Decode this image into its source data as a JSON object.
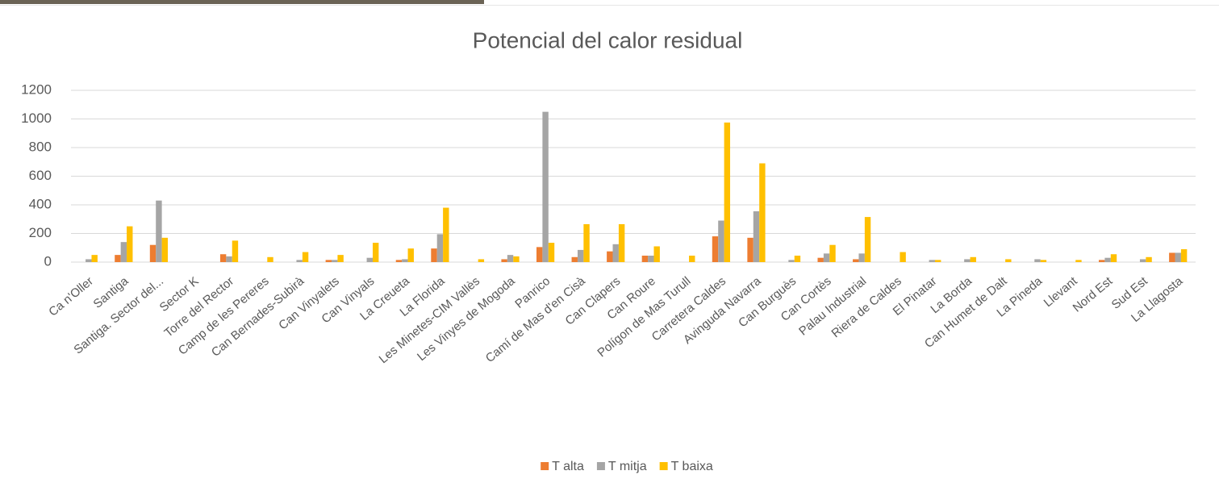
{
  "chart_data": {
    "type": "bar",
    "title": "Potencial del calor residual",
    "categories": [
      "Ca n'Oller",
      "Santiga",
      "Santiga. Sector del...",
      "Sector K",
      "Torre del Rector",
      "Camp de les Pereres",
      "Can Bernades-Subirà",
      "Can Vinyalets",
      "Can Vinyals",
      "La Creueta",
      "La Florida",
      "Les Minetes-CIM Vallès",
      "Les Vinyes de Mogoda",
      "Panrico",
      "Camí de Mas d'en Cisà",
      "Can Clapers",
      "Can Roure",
      "Polígon de Mas Turull",
      "Carretera Caldes",
      "Avinguda Navarra",
      "Can Burguès",
      "Can Cortès",
      "Palau Industrial",
      "Riera de Caldes",
      "El Pinatar",
      "La Borda",
      "Can Humet de Dalt",
      "La Pineda",
      "Llevant",
      "Nord Est",
      "Sud Est",
      "La Llagosta"
    ],
    "series": [
      {
        "name": "T alta",
        "color": "#ed7d31",
        "values": [
          0,
          50,
          120,
          0,
          55,
          0,
          0,
          15,
          0,
          15,
          95,
          0,
          20,
          105,
          35,
          75,
          45,
          0,
          180,
          170,
          0,
          30,
          20,
          0,
          0,
          0,
          0,
          0,
          0,
          15,
          0,
          65
        ]
      },
      {
        "name": "T mitja",
        "color": "#a5a5a5",
        "values": [
          20,
          140,
          430,
          0,
          40,
          0,
          15,
          15,
          30,
          20,
          195,
          0,
          50,
          1050,
          85,
          125,
          45,
          0,
          290,
          355,
          15,
          60,
          60,
          0,
          15,
          20,
          0,
          20,
          0,
          30,
          20,
          65
        ]
      },
      {
        "name": "T baixa",
        "color": "#ffc000",
        "values": [
          50,
          250,
          170,
          0,
          150,
          35,
          70,
          50,
          135,
          95,
          380,
          20,
          40,
          135,
          265,
          265,
          110,
          45,
          975,
          690,
          45,
          120,
          315,
          70,
          15,
          35,
          20,
          15,
          15,
          55,
          35,
          90
        ]
      }
    ],
    "ylim": [
      0,
      1200
    ],
    "yticks": [
      0,
      200,
      400,
      600,
      800,
      1000,
      1200
    ],
    "grid": true,
    "legend": "bottom"
  }
}
